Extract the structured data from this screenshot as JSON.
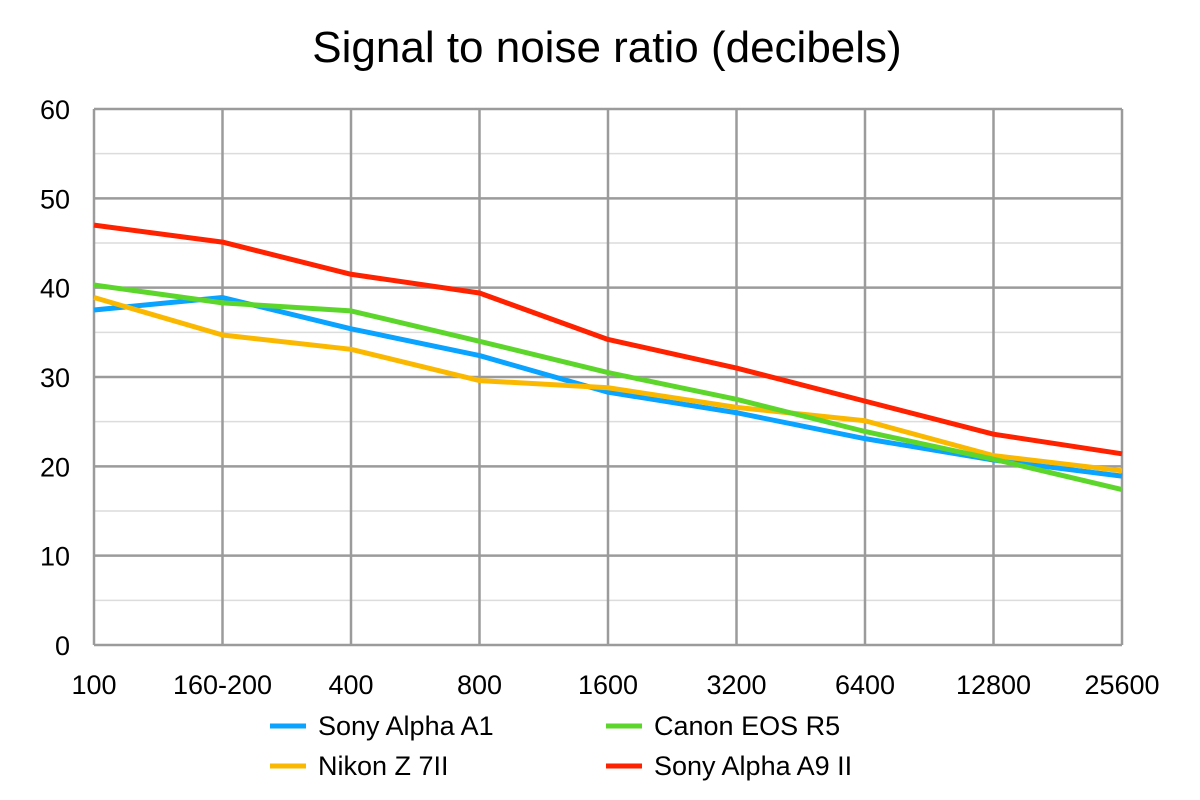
{
  "chart_data": {
    "type": "line",
    "title": "Signal to noise ratio (decibels)",
    "xlabel": "",
    "ylabel": "",
    "categories": [
      "100",
      "160-200",
      "400",
      "800",
      "1600",
      "3200",
      "6400",
      "12800",
      "25600"
    ],
    "ylim": [
      0,
      60
    ],
    "yticks": [
      0,
      10,
      20,
      30,
      40,
      50,
      60
    ],
    "grid": true,
    "legend_position": "bottom",
    "series": [
      {
        "name": "Sony Alpha A1",
        "color": "#0aa3ff",
        "values": [
          37.5,
          38.9,
          35.4,
          32.4,
          28.3,
          26.0,
          23.1,
          20.7,
          18.9
        ]
      },
      {
        "name": "Canon EOS R5",
        "color": "#5dd62c",
        "values": [
          40.3,
          38.3,
          37.4,
          34.0,
          30.5,
          27.5,
          23.9,
          20.8,
          17.4
        ]
      },
      {
        "name": "Nikon Z 7II",
        "color": "#fbb800",
        "values": [
          38.9,
          34.7,
          33.1,
          29.6,
          28.8,
          26.6,
          25.1,
          21.2,
          19.5
        ]
      },
      {
        "name": "Sony Alpha A9 II",
        "color": "#ff2200",
        "values": [
          47.0,
          45.1,
          41.5,
          39.4,
          34.2,
          31.0,
          27.3,
          23.6,
          21.4
        ]
      }
    ]
  }
}
